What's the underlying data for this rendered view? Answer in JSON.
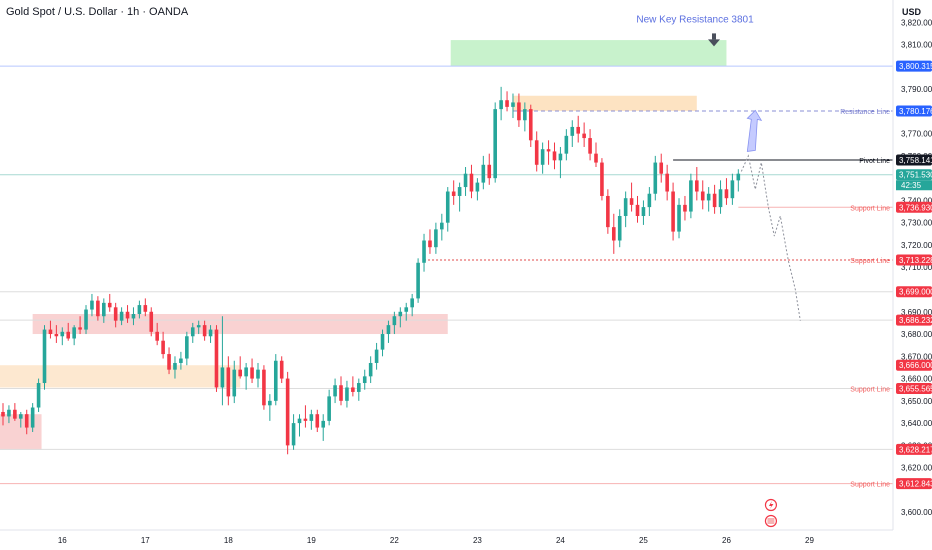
{
  "header": {
    "title": "Gold Spot / U.S. Dollar · 1h · OANDA",
    "currency": "USD"
  },
  "chart_data": {
    "type": "candlestick",
    "ylim": [
      3592,
      3830
    ],
    "y_ticks": [
      "3,820.000",
      "3,810.000",
      "3,790.000",
      "3,770.000",
      "3,760.000",
      "3,740.000",
      "3,730.000",
      "3,720.000",
      "3,710.000",
      "3,690.000",
      "3,680.000",
      "3,670.000",
      "3,660.000",
      "3,650.000",
      "3,640.000",
      "3,630.000",
      "3,620.000",
      "3,600.000"
    ],
    "x_labels": [
      {
        "label": "16",
        "index": 10
      },
      {
        "label": "17",
        "index": 24
      },
      {
        "label": "18",
        "index": 38
      },
      {
        "label": "19",
        "index": 52
      },
      {
        "label": "22",
        "index": 66
      },
      {
        "label": "23",
        "index": 80
      },
      {
        "label": "24",
        "index": 94
      },
      {
        "label": "25",
        "index": 108
      },
      {
        "label": "26",
        "index": 122
      },
      {
        "label": "29",
        "index": 136
      }
    ],
    "candles": [
      [
        3645,
        3649,
        3639,
        3643
      ],
      [
        3643,
        3648,
        3640,
        3646
      ],
      [
        3646,
        3649,
        3641,
        3642
      ],
      [
        3642,
        3645,
        3638,
        3644
      ],
      [
        3644,
        3646,
        3635,
        3638
      ],
      [
        3638,
        3649,
        3636,
        3647
      ],
      [
        3647,
        3660,
        3645,
        3658
      ],
      [
        3658,
        3684,
        3655,
        3682
      ],
      [
        3682,
        3686,
        3678,
        3680
      ],
      [
        3680,
        3684,
        3676,
        3679
      ],
      [
        3679,
        3683,
        3675,
        3681
      ],
      [
        3681,
        3685,
        3677,
        3678
      ],
      [
        3678,
        3684,
        3675,
        3683
      ],
      [
        3683,
        3688,
        3680,
        3682
      ],
      [
        3682,
        3693,
        3680,
        3691
      ],
      [
        3691,
        3698,
        3688,
        3695
      ],
      [
        3695,
        3697,
        3686,
        3688
      ],
      [
        3688,
        3696,
        3685,
        3694
      ],
      [
        3694,
        3698,
        3690,
        3692
      ],
      [
        3692,
        3694,
        3683,
        3686
      ],
      [
        3686,
        3692,
        3684,
        3690
      ],
      [
        3690,
        3693,
        3685,
        3687
      ],
      [
        3687,
        3692,
        3684,
        3689
      ],
      [
        3689,
        3695,
        3687,
        3693
      ],
      [
        3693,
        3696,
        3688,
        3690
      ],
      [
        3690,
        3692,
        3679,
        3681
      ],
      [
        3681,
        3685,
        3675,
        3677
      ],
      [
        3677,
        3681,
        3669,
        3671
      ],
      [
        3671,
        3674,
        3662,
        3664
      ],
      [
        3664,
        3670,
        3660,
        3667
      ],
      [
        3667,
        3672,
        3664,
        3669
      ],
      [
        3669,
        3681,
        3666,
        3679
      ],
      [
        3679,
        3685,
        3676,
        3683
      ],
      [
        3683,
        3686,
        3680,
        3684
      ],
      [
        3684,
        3686,
        3677,
        3679
      ],
      [
        3679,
        3684,
        3676,
        3682
      ],
      [
        3682,
        3684,
        3654,
        3656
      ],
      [
        3656,
        3688,
        3648,
        3665
      ],
      [
        3665,
        3670,
        3648,
        3652
      ],
      [
        3652,
        3668,
        3649,
        3664
      ],
      [
        3664,
        3670,
        3660,
        3661
      ],
      [
        3661,
        3667,
        3655,
        3665
      ],
      [
        3665,
        3669,
        3658,
        3660
      ],
      [
        3660,
        3667,
        3656,
        3664
      ],
      [
        3664,
        3666,
        3646,
        3648
      ],
      [
        3648,
        3653,
        3641,
        3650
      ],
      [
        3650,
        3671,
        3648,
        3668
      ],
      [
        3668,
        3670,
        3658,
        3660
      ],
      [
        3660,
        3663,
        3626,
        3630
      ],
      [
        3630,
        3644,
        3628,
        3640
      ],
      [
        3640,
        3644,
        3634,
        3642
      ],
      [
        3642,
        3648,
        3638,
        3641
      ],
      [
        3641,
        3646,
        3637,
        3644
      ],
      [
        3644,
        3646,
        3636,
        3638
      ],
      [
        3638,
        3644,
        3632,
        3641
      ],
      [
        3641,
        3655,
        3639,
        3652
      ],
      [
        3652,
        3660,
        3649,
        3657
      ],
      [
        3657,
        3661,
        3648,
        3650
      ],
      [
        3650,
        3659,
        3647,
        3656
      ],
      [
        3656,
        3661,
        3652,
        3654
      ],
      [
        3654,
        3660,
        3650,
        3658
      ],
      [
        3658,
        3664,
        3655,
        3661
      ],
      [
        3661,
        3670,
        3658,
        3667
      ],
      [
        3667,
        3676,
        3664,
        3673
      ],
      [
        3673,
        3682,
        3670,
        3680
      ],
      [
        3680,
        3686,
        3676,
        3684
      ],
      [
        3684,
        3690,
        3680,
        3688
      ],
      [
        3688,
        3692,
        3683,
        3690
      ],
      [
        3690,
        3694,
        3686,
        3692
      ],
      [
        3692,
        3698,
        3688,
        3696
      ],
      [
        3696,
        3714,
        3694,
        3712
      ],
      [
        3712,
        3725,
        3708,
        3722
      ],
      [
        3722,
        3727,
        3716,
        3719
      ],
      [
        3719,
        3730,
        3716,
        3727
      ],
      [
        3727,
        3734,
        3722,
        3730
      ],
      [
        3730,
        3746,
        3726,
        3744
      ],
      [
        3744,
        3749,
        3738,
        3742
      ],
      [
        3742,
        3748,
        3735,
        3746
      ],
      [
        3746,
        3755,
        3742,
        3752
      ],
      [
        3752,
        3756,
        3741,
        3744
      ],
      [
        3744,
        3750,
        3740,
        3748
      ],
      [
        3748,
        3760,
        3745,
        3756
      ],
      [
        3756,
        3761,
        3747,
        3750
      ],
      [
        3750,
        3784,
        3748,
        3781
      ],
      [
        3781,
        3791,
        3776,
        3785
      ],
      [
        3785,
        3789,
        3780,
        3782
      ],
      [
        3782,
        3788,
        3777,
        3784
      ],
      [
        3784,
        3788,
        3773,
        3776
      ],
      [
        3776,
        3784,
        3771,
        3781
      ],
      [
        3781,
        3783,
        3764,
        3767
      ],
      [
        3767,
        3771,
        3753,
        3756
      ],
      [
        3756,
        3766,
        3752,
        3763
      ],
      [
        3763,
        3767,
        3756,
        3762
      ],
      [
        3762,
        3766,
        3754,
        3758
      ],
      [
        3758,
        3764,
        3750,
        3761
      ],
      [
        3761,
        3772,
        3758,
        3769
      ],
      [
        3769,
        3776,
        3764,
        3773
      ],
      [
        3773,
        3778,
        3766,
        3770
      ],
      [
        3770,
        3775,
        3764,
        3768
      ],
      [
        3768,
        3772,
        3758,
        3761
      ],
      [
        3761,
        3766,
        3755,
        3757
      ],
      [
        3757,
        3759,
        3740,
        3742
      ],
      [
        3742,
        3745,
        3725,
        3728
      ],
      [
        3728,
        3734,
        3716,
        3722
      ],
      [
        3722,
        3736,
        3719,
        3733
      ],
      [
        3733,
        3744,
        3728,
        3741
      ],
      [
        3741,
        3748,
        3735,
        3738
      ],
      [
        3738,
        3742,
        3730,
        3733
      ],
      [
        3733,
        3740,
        3729,
        3737
      ],
      [
        3737,
        3746,
        3733,
        3743
      ],
      [
        3743,
        3760,
        3740,
        3757
      ],
      [
        3757,
        3761,
        3748,
        3752
      ],
      [
        3752,
        3756,
        3740,
        3744
      ],
      [
        3744,
        3748,
        3722,
        3726
      ],
      [
        3726,
        3741,
        3723,
        3738
      ],
      [
        3738,
        3742,
        3731,
        3735
      ],
      [
        3735,
        3752,
        3732,
        3749
      ],
      [
        3749,
        3755,
        3740,
        3744
      ],
      [
        3744,
        3749,
        3736,
        3740
      ],
      [
        3740,
        3746,
        3735,
        3743
      ],
      [
        3743,
        3747,
        3734,
        3737
      ],
      [
        3737,
        3749,
        3734,
        3745
      ],
      [
        3745,
        3750,
        3738,
        3741
      ],
      [
        3741,
        3752,
        3738,
        3749
      ],
      [
        3749,
        3754,
        3744,
        3752
      ]
    ]
  },
  "zones": [
    {
      "type": "resistance",
      "color": "#c8f2cc",
      "y1": 3800.3,
      "y2": 3812,
      "i1": 75.5,
      "i2": 122
    },
    {
      "type": "supply",
      "color": "#fde3c2",
      "y1": 3780.2,
      "y2": 3787,
      "i1": 86,
      "i2": 117
    },
    {
      "type": "demand",
      "color": "#f9d2d2",
      "y1": 3680,
      "y2": 3689,
      "i1": 5,
      "i2": 75
    },
    {
      "type": "demand",
      "color": "#fde8d0",
      "y1": 3656,
      "y2": 3666,
      "i1": -1,
      "i2": 40
    },
    {
      "type": "demand",
      "color": "#f9d2d2",
      "y1": 3628,
      "y2": 3644,
      "i1": -1,
      "i2": 6.5
    }
  ],
  "levels": [
    {
      "value": 3800.315,
      "label": "3,800.315",
      "badge_color": "#2962ff",
      "line_color": "#b8c6ff",
      "style": "solid",
      "from_i": -1,
      "text": ""
    },
    {
      "value": 3780.176,
      "label": "3,780.176",
      "badge_color": "#2962ff",
      "line_color": "#8a8fd6",
      "style": "dashed",
      "from_i": 86,
      "text": "Resistance Line",
      "text_color": "#7b80d0"
    },
    {
      "value": 3758.141,
      "label": "3,758.141",
      "badge_color": "#131722",
      "line_color": "#131722",
      "style": "solid",
      "from_i": 113,
      "text": "Pivot Line",
      "text_color": "#131722"
    },
    {
      "value": 3751.53,
      "label": "3,751.530",
      "badge_color": "#26a69a",
      "line_color": "#a7d9d2",
      "style": "solid",
      "from_i": -1,
      "text": ""
    },
    {
      "value": 3736.93,
      "label": "3,736.930",
      "badge_color": "#f23645",
      "line_color": "#f7b3b3",
      "style": "solid",
      "from_i": 124,
      "text": "Support Line",
      "text_color": "#f26060"
    },
    {
      "value": 3713.228,
      "label": "3,713.228",
      "badge_color": "#f23645",
      "line_color": "#e04848",
      "style": "dotted",
      "from_i": 71,
      "text": "Support Line",
      "text_color": "#f26060"
    },
    {
      "value": 3699.0,
      "label": "3,699.000",
      "badge_color": "#f23645",
      "line_color": "#dddddd",
      "style": "solid",
      "from_i": -1,
      "text": ""
    },
    {
      "value": 3686.232,
      "label": "3,686.232",
      "badge_color": "#f23645",
      "line_color": "#dddddd",
      "style": "solid",
      "from_i": -1,
      "text": ""
    },
    {
      "value": 3666.0,
      "label": "3,666.000",
      "badge_color": "#f23645",
      "line_color": "#ffffff",
      "style": "none",
      "from_i": -1,
      "text": ""
    },
    {
      "value": 3655.565,
      "label": "3,655.565",
      "badge_color": "#f23645",
      "line_color": "#dddddd",
      "style": "solid",
      "from_i": -1,
      "text": "Support Line",
      "text_color": "#f26060"
    },
    {
      "value": 3628.217,
      "label": "3,628.217",
      "badge_color": "#f23645",
      "line_color": "#dddddd",
      "style": "solid",
      "from_i": -1,
      "text": ""
    },
    {
      "value": 3612.843,
      "label": "3,612.843",
      "badge_color": "#f23645",
      "line_color": "#f7b3b3",
      "style": "solid",
      "from_i": -1,
      "text": "Support Line",
      "text_color": "#f26060"
    }
  ],
  "countdown": "42:35",
  "annotation": {
    "text": "New Key Resistance 3801",
    "color": "#5b6fe0"
  },
  "colors": {
    "up": "#26a69a",
    "down": "#f23645"
  }
}
